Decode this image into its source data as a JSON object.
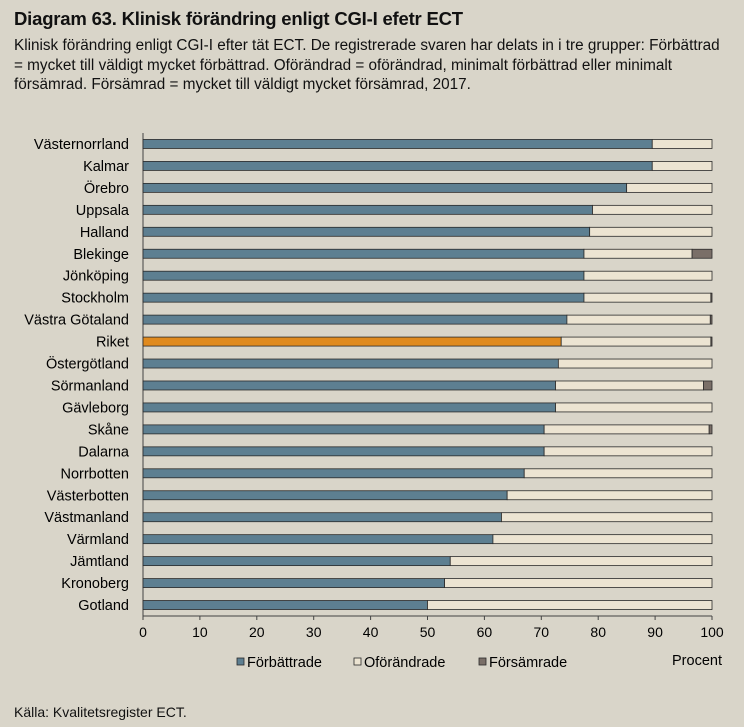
{
  "header": {
    "title": "Diagram 63. Klinisk förändring enligt CGI-I efetr ECT",
    "subtitle": "Klinisk förändring enligt CGI-I efter tät ECT. De registrerade svaren har delats in i tre grupper: Förbättrad = mycket till väldigt mycket förbättrad. Oförändrad = oförändrad, minimalt förbättrad eller minimalt försämrad. Försämrad = mycket till väldigt mycket försämrad, 2017."
  },
  "source": "Källa: Kvalitetsregister ECT.",
  "colors": {
    "forbattrade": "#5d7f91",
    "riket": "#e08a1e",
    "oforandrade": "#ece4d2",
    "forsamrade": "#7a6f68",
    "outline": "#2a2a2a"
  },
  "chart_data": {
    "type": "bar",
    "orientation": "horizontal",
    "stacked": true,
    "categories": [
      "Västernorrland",
      "Kalmar",
      "Örebro",
      "Uppsala",
      "Halland",
      "Blekinge",
      "Jönköping",
      "Stockholm",
      "Västra Götaland",
      "Riket",
      "Östergötland",
      "Sörmanland",
      "Gävleborg",
      "Skåne",
      "Dalarna",
      "Norrbotten",
      "Västerbotten",
      "Västmanland",
      "Värmland",
      "Jämtland",
      "Kronoberg",
      "Gotland"
    ],
    "highlight": "Riket",
    "series": [
      {
        "name": "Förbättrade",
        "values": [
          89.5,
          89.5,
          85,
          79,
          78.5,
          77.5,
          77.5,
          77.5,
          74.5,
          73.5,
          73,
          72.5,
          72.5,
          70.5,
          70.5,
          67,
          64,
          63,
          61.5,
          54,
          53,
          50
        ]
      },
      {
        "name": "Oförändrade",
        "values": [
          10.5,
          10.5,
          15,
          21,
          21.5,
          19,
          22.5,
          22.3,
          25.2,
          26.3,
          27,
          26,
          27.5,
          29,
          29.5,
          33,
          36,
          37,
          38.5,
          46,
          47,
          50
        ]
      },
      {
        "name": "Försämrade",
        "values": [
          0,
          0,
          0,
          0,
          0,
          3.5,
          0,
          0.2,
          0.3,
          0.2,
          0,
          1.5,
          0,
          0.5,
          0,
          0,
          0,
          0,
          0,
          0,
          0,
          0
        ]
      }
    ],
    "xlim": [
      0,
      100
    ],
    "xticks": [
      "0",
      "10",
      "20",
      "30",
      "40",
      "50",
      "60",
      "70",
      "80",
      "90",
      "100"
    ],
    "xlabel": "Procent",
    "legend": {
      "position": "bottom",
      "labels": [
        "Förbättrade",
        "Oförändrade",
        "Försämrade"
      ]
    }
  }
}
